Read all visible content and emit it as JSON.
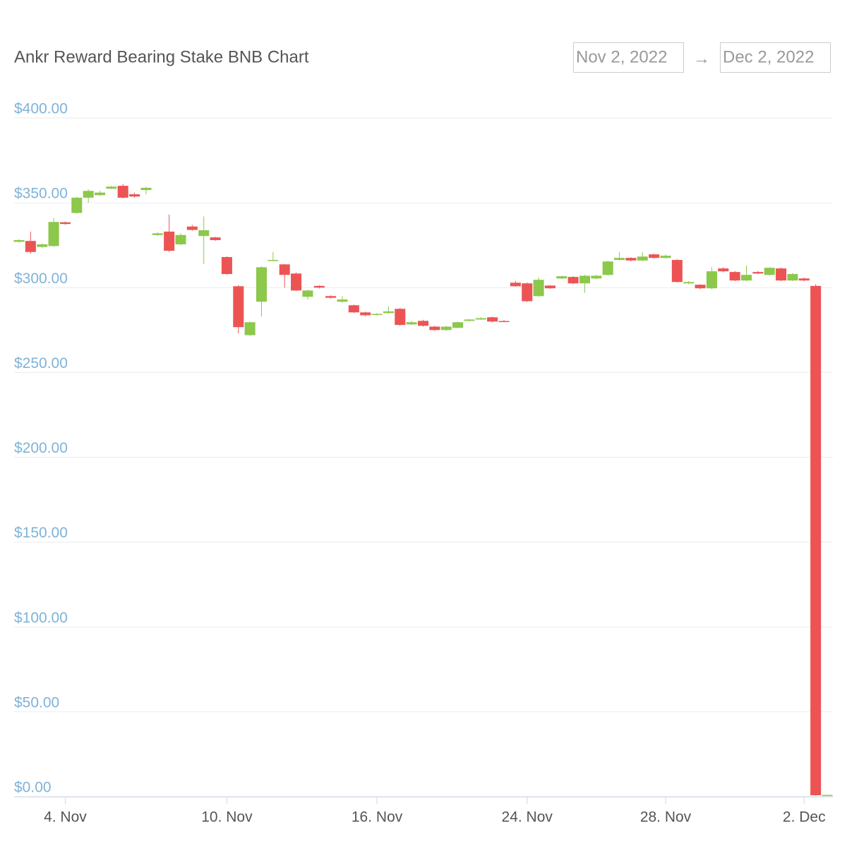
{
  "chart_data": {
    "type": "candlestick",
    "title": "Ankr Reward Bearing Stake BNB Chart",
    "range_start": "Nov 2, 2022",
    "range_separator": "→",
    "range_end": "Dec 2, 2022",
    "up_color": "#8cc84b",
    "down_color": "#ec5454",
    "grid": true,
    "ylim": [
      0,
      400
    ],
    "yticks": [
      {
        "value": 0,
        "label": "$0.00"
      },
      {
        "value": 50,
        "label": "$50.00"
      },
      {
        "value": 100,
        "label": "$100.00"
      },
      {
        "value": 150,
        "label": "$150.00"
      },
      {
        "value": 200,
        "label": "$200.00"
      },
      {
        "value": 250,
        "label": "$250.00"
      },
      {
        "value": 300,
        "label": "$300.00"
      },
      {
        "value": 350,
        "label": "$350.00"
      },
      {
        "value": 400,
        "label": "$400.00"
      }
    ],
    "categories": [
      null,
      null,
      null,
      null,
      "4. Nov",
      null,
      null,
      null,
      null,
      null,
      null,
      null,
      null,
      null,
      null,
      null,
      null,
      null,
      "10. Nov",
      null,
      null,
      null,
      null,
      null,
      null,
      null,
      null,
      null,
      null,
      null,
      null,
      "16. Nov",
      null,
      null,
      null,
      null,
      null,
      null,
      null,
      null,
      null,
      null,
      null,
      null,
      "24. Nov",
      null,
      null,
      null,
      null,
      null,
      null,
      null,
      null,
      null,
      null,
      null,
      "28. Nov",
      null,
      null,
      null,
      null,
      null,
      null,
      null,
      null,
      null,
      null,
      null,
      "2. Dec",
      null,
      null
    ],
    "open": [
      327,
      327.5,
      324,
      324.5,
      338.5,
      344,
      353,
      354.5,
      358.3,
      360,
      355,
      357.5,
      331,
      333,
      325.5,
      336,
      330.4,
      329.6,
      318,
      300.8,
      272,
      291.7,
      315.8,
      313.7,
      308.3,
      294.6,
      301,
      295,
      291.7,
      289.6,
      285.4,
      284,
      285,
      287.5,
      278.3,
      280.4,
      277,
      275,
      276.3,
      280.4,
      281.2,
      282.5,
      280.3,
      302.9,
      302.5,
      295,
      301.2,
      305.4,
      306.3,
      302.5,
      305.4,
      307.5,
      316.3,
      317.5,
      316,
      319.6,
      317.5,
      316.3,
      302.5,
      301.7,
      299.6,
      311.3,
      309.2,
      304.2,
      309.2,
      307.5,
      311.3,
      304.2,
      305.4,
      301,
      0.8
    ],
    "high": [
      328.5,
      333,
      326,
      341,
      339,
      353.5,
      358,
      357,
      360,
      361,
      356,
      359.5,
      332.5,
      343,
      332,
      337,
      342,
      330,
      318.5,
      301.5,
      280,
      312.5,
      321,
      314,
      309,
      298.8,
      301.5,
      295.5,
      295,
      290,
      285.8,
      285,
      289,
      288,
      280.5,
      281,
      277.5,
      277.5,
      280,
      281.5,
      282.5,
      283,
      281,
      304,
      303,
      306,
      301.5,
      307,
      306.8,
      307.5,
      307.5,
      315.8,
      321,
      318,
      321,
      320,
      319.5,
      316.8,
      303.8,
      302,
      312,
      312,
      309.8,
      313,
      309.8,
      312,
      311.8,
      308.5,
      306,
      302,
      1.2
    ],
    "low": [
      326.5,
      320,
      323.5,
      324,
      337,
      343.5,
      350,
      354,
      358,
      352.5,
      353,
      355,
      330.5,
      321,
      325,
      333.5,
      314,
      327.5,
      307.5,
      273,
      271.5,
      283,
      315.5,
      300,
      298,
      293,
      299.5,
      293.5,
      291,
      285,
      283,
      283.5,
      284.5,
      277.5,
      278,
      277,
      274.5,
      274.5,
      276,
      280,
      281,
      279.5,
      279.8,
      300.5,
      291.5,
      294.5,
      299.3,
      305,
      302,
      297,
      305,
      307,
      316,
      315.5,
      315.5,
      317,
      317,
      303,
      302,
      299,
      299,
      309,
      303.8,
      303.8,
      308,
      307,
      303.8,
      303.8,
      303.8,
      0.5,
      0.5
    ],
    "close": [
      328,
      321,
      325.5,
      338.7,
      337.5,
      353,
      357,
      356,
      359.5,
      353,
      353.7,
      358.8,
      332,
      321.7,
      331,
      334,
      333.8,
      328,
      308,
      276.7,
      279.6,
      312,
      316.3,
      307.5,
      298.3,
      298.3,
      300,
      294,
      293,
      285.4,
      283.7,
      284.5,
      286,
      278,
      279.6,
      277.5,
      275,
      277,
      279.6,
      281.2,
      282,
      280,
      280,
      300.8,
      292,
      304.6,
      299.6,
      306.7,
      302.5,
      307,
      307,
      315.4,
      317.5,
      316,
      318.3,
      317.5,
      318.8,
      303.3,
      303.3,
      299.6,
      309.6,
      309.6,
      304.2,
      307.5,
      308.3,
      311.7,
      304.2,
      308,
      304.2,
      0.8,
      1.0
    ]
  }
}
